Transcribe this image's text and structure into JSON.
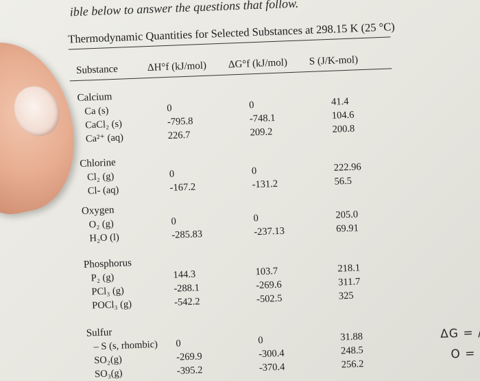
{
  "top_note": "ible below to answer the questions that follow.",
  "title": "Thermodynamic Quantities for Selected Substances at 298.15 K (25 °C)",
  "headers": {
    "substance": "Substance",
    "dh": "ΔH°f (kJ/mol)",
    "dg": "ΔG°f (kJ/mol)",
    "s": "S (J/K-mol)"
  },
  "groups": [
    {
      "name": "Calcium",
      "rows": [
        {
          "sub": "Ca (s)",
          "dh": "0",
          "dg": "0",
          "s": "41.4"
        },
        {
          "sub": "CaCl₂ (s)",
          "dh": "-795.8",
          "dg": "-748.1",
          "s": "104.6"
        },
        {
          "sub": "Ca²⁺ (aq)",
          "dh": "226.7",
          "dg": "209.2",
          "s": "200.8"
        }
      ]
    },
    {
      "name": "Chlorine",
      "rows": [
        {
          "sub": "Cl₂ (g)",
          "dh": "0",
          "dg": "0",
          "s": "222.96"
        },
        {
          "sub": "Cl- (aq)",
          "dh": "-167.2",
          "dg": "-131.2",
          "s": "56.5"
        }
      ]
    },
    {
      "name": "Oxygen",
      "rows": [
        {
          "sub": "O₂ (g)",
          "dh": "0",
          "dg": "0",
          "s": "205.0"
        },
        {
          "sub": "H₂O (l)",
          "dh": "-285.83",
          "dg": "-237.13",
          "s": "69.91"
        }
      ]
    },
    {
      "name": "Phosphorus",
      "rows": [
        {
          "sub": "P₂ (g)",
          "dh": "144.3",
          "dg": "103.7",
          "s": "218.1"
        },
        {
          "sub": "PCl₃ (g)",
          "dh": "-288.1",
          "dg": "-269.6",
          "s": "311.7"
        },
        {
          "sub": "POCl₃ (g)",
          "dh": "-542.2",
          "dg": "-502.5",
          "s": "325"
        }
      ]
    },
    {
      "name": "Sulfur",
      "rows": [
        {
          "sub": "– S (s, rhombic)",
          "dh": "0",
          "dg": "0",
          "s": "31.88"
        },
        {
          "sub": "SO₂(g)",
          "dh": "-269.9",
          "dg": "-300.4",
          "s": "248.5"
        },
        {
          "sub": "SO₃(g)",
          "dh": "-395.2",
          "dg": "-370.4",
          "s": "256.2"
        }
      ]
    }
  ],
  "margin_notes": [
    "ΔG = /",
    "O ="
  ]
}
